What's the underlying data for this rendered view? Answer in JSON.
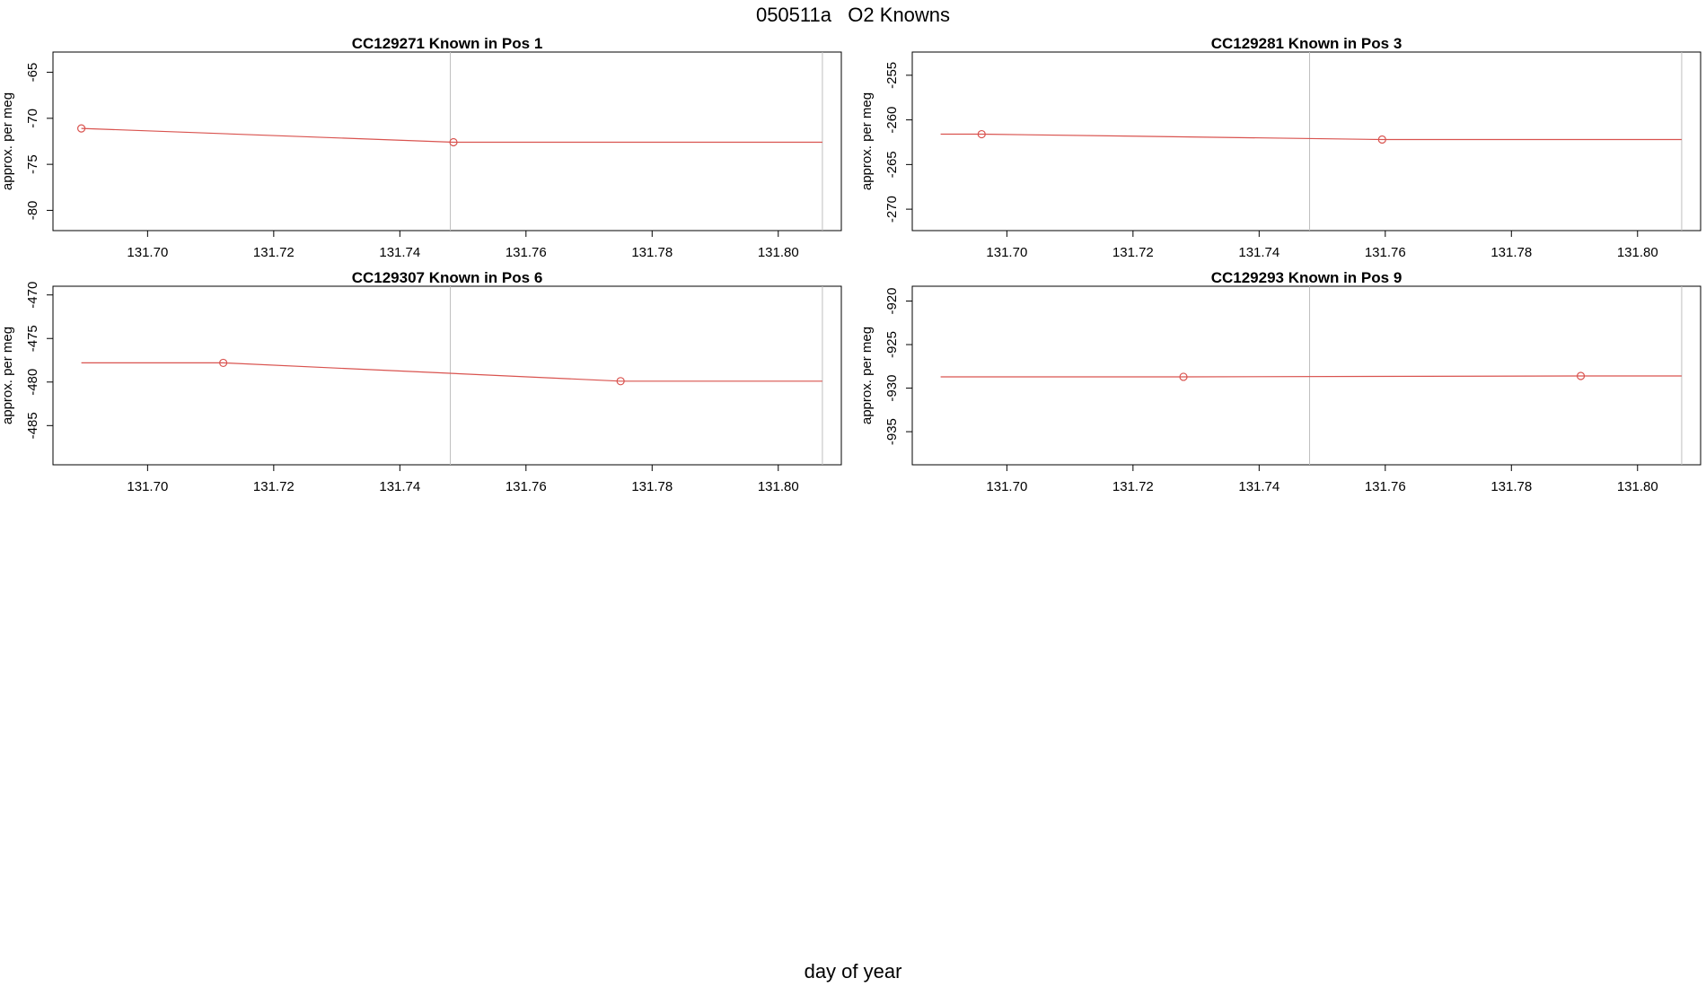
{
  "figure": {
    "title": "050511a   O2 Knowns",
    "xlabel": "day of year"
  },
  "chart_data": [
    {
      "type": "line",
      "title": "CC129271    Known in Pos 1",
      "ylabel": "approx. per meg",
      "xlim": [
        131.685,
        131.81
      ],
      "ylim": [
        -82.2,
        -62.8
      ],
      "xticks": [
        "131.70",
        "131.72",
        "131.74",
        "131.76",
        "131.78",
        "131.80"
      ],
      "yticks": [
        "-65",
        "-70",
        "-75",
        "-80"
      ],
      "vlines": [
        131.748,
        131.807
      ],
      "line_x": [
        131.6895,
        131.7485,
        131.807
      ],
      "line_y": [
        -71.1,
        -72.6,
        -72.6
      ],
      "points": [
        {
          "x": 131.6895,
          "y": -71.1
        },
        {
          "x": 131.7485,
          "y": -72.6
        }
      ]
    },
    {
      "type": "line",
      "title": "CC129281    Known in Pos 3",
      "ylabel": "approx. per meg",
      "xlim": [
        131.685,
        131.81
      ],
      "ylim": [
        -272.4,
        -252.4
      ],
      "xticks": [
        "131.70",
        "131.72",
        "131.74",
        "131.76",
        "131.78",
        "131.80"
      ],
      "yticks": [
        "-255",
        "-260",
        "-265",
        "-270"
      ],
      "vlines": [
        131.748,
        131.807
      ],
      "line_x": [
        131.6895,
        131.696,
        131.7595,
        131.807
      ],
      "line_y": [
        -261.6,
        -261.6,
        -262.2,
        -262.2
      ],
      "points": [
        {
          "x": 131.696,
          "y": -261.6
        },
        {
          "x": 131.7595,
          "y": -262.2
        }
      ]
    },
    {
      "type": "line",
      "title": "CC129307    Known in Pos 6",
      "ylabel": "approx. per meg",
      "xlim": [
        131.685,
        131.81
      ],
      "ylim": [
        -489.5,
        -469.0
      ],
      "xticks": [
        "131.70",
        "131.72",
        "131.74",
        "131.76",
        "131.78",
        "131.80"
      ],
      "yticks": [
        "-470",
        "-475",
        "-480",
        "-485"
      ],
      "vlines": [
        131.748,
        131.807
      ],
      "line_x": [
        131.6895,
        131.712,
        131.775,
        131.807
      ],
      "line_y": [
        -477.8,
        -477.8,
        -479.9,
        -479.9
      ],
      "points": [
        {
          "x": 131.712,
          "y": -477.8
        },
        {
          "x": 131.775,
          "y": -479.9
        }
      ]
    },
    {
      "type": "line",
      "title": "CC129293    Known in Pos 9",
      "ylabel": "approx. per meg",
      "xlim": [
        131.685,
        131.81
      ],
      "ylim": [
        -938.8,
        -918.3
      ],
      "xticks": [
        "131.70",
        "131.72",
        "131.74",
        "131.76",
        "131.78",
        "131.80"
      ],
      "yticks": [
        "-920",
        "-925",
        "-930",
        "-935"
      ],
      "vlines": [
        131.748,
        131.807
      ],
      "line_x": [
        131.6895,
        131.728,
        131.791,
        131.807
      ],
      "line_y": [
        -928.7,
        -928.7,
        -928.6,
        -928.6
      ],
      "points": [
        {
          "x": 131.728,
          "y": -928.7
        },
        {
          "x": 131.791,
          "y": -928.6
        }
      ]
    }
  ]
}
